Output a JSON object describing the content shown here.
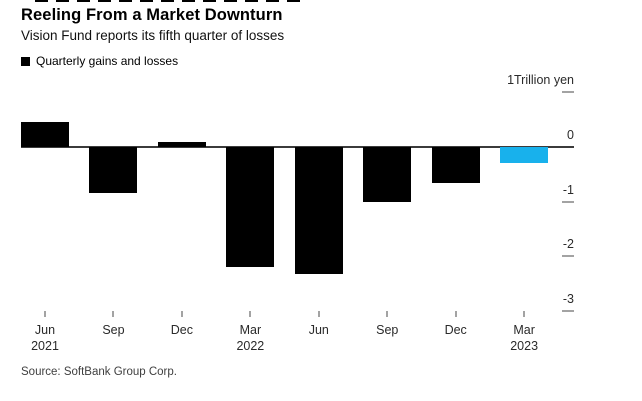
{
  "colors": {
    "bar": "#000000",
    "highlight_bar": "#18b1ec",
    "axis_line": "#3b3b3b",
    "tick_mark": "#a3a3a3",
    "axis_label": "#2a2a2a",
    "source_text": "#3f3f3f"
  },
  "chart_data": {
    "type": "bar",
    "title": "Reeling From a Market Downturn",
    "subtitle": "Vision Fund reports its fifth quarter of losses",
    "series_name": "Quarterly gains and losses",
    "unit_label": "1Trillion yen",
    "categories": [
      "Jun 2021",
      "Sep 2021",
      "Dec 2021",
      "Mar 2022",
      "Jun 2022",
      "Sep 2022",
      "Dec 2022",
      "Mar 2023"
    ],
    "values": [
      0.45,
      -0.85,
      0.09,
      -2.2,
      -2.33,
      -1.0,
      -0.66,
      -0.3
    ],
    "highlight_index": 7,
    "highlight_color": "#18b1ec",
    "x_ticks": [
      {
        "month": "Jun",
        "year": "2021"
      },
      {
        "month": "Sep",
        "year": ""
      },
      {
        "month": "Dec",
        "year": ""
      },
      {
        "month": "Mar",
        "year": "2022"
      },
      {
        "month": "Jun",
        "year": ""
      },
      {
        "month": "Sep",
        "year": ""
      },
      {
        "month": "Dec",
        "year": ""
      },
      {
        "month": "Mar",
        "year": "2023"
      }
    ],
    "y_ticks": [
      {
        "label": "1Trillion yen",
        "value": 1
      },
      {
        "label": "0",
        "value": 0
      },
      {
        "label": "-1",
        "value": -1
      },
      {
        "label": "-2",
        "value": -2
      },
      {
        "label": "-3",
        "value": -3
      }
    ],
    "ylim": [
      -3.2,
      1.1
    ],
    "ylabel": "Trillion yen",
    "xlabel": "",
    "grid": false,
    "legend_position": "top-left",
    "source": "Source: SoftBank Group Corp."
  }
}
